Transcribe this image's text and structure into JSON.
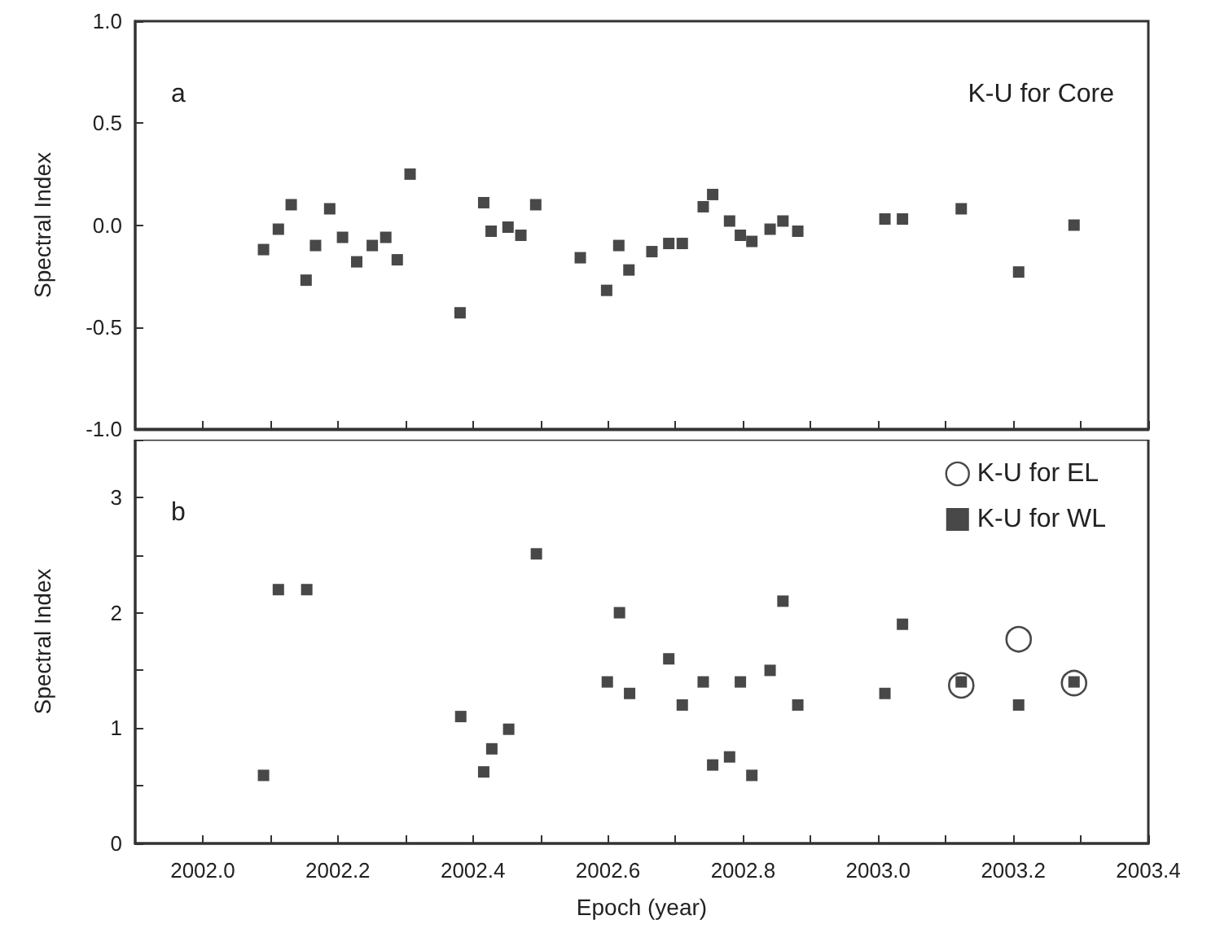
{
  "chart_data": [
    {
      "type": "scatter",
      "ylabel": "Spectral Index",
      "annotations": [
        "a",
        "K-U for Core"
      ],
      "marker": "square",
      "tick_labels": "y",
      "xlim": [
        2001.9,
        2003.4
      ],
      "xticks": [
        {
          "value": 2002.0,
          "label": null
        },
        {
          "value": 2002.1,
          "label": null
        },
        {
          "value": 2002.2,
          "label": null
        },
        {
          "value": 2002.3,
          "label": null
        },
        {
          "value": 2002.4,
          "label": null
        },
        {
          "value": 2002.5,
          "label": null
        },
        {
          "value": 2002.6,
          "label": null
        },
        {
          "value": 2002.7,
          "label": null
        },
        {
          "value": 2002.8,
          "label": null
        },
        {
          "value": 2002.9,
          "label": null
        },
        {
          "value": 2003.0,
          "label": null
        },
        {
          "value": 2003.1,
          "label": null
        },
        {
          "value": 2003.2,
          "label": null
        },
        {
          "value": 2003.3,
          "label": null
        },
        {
          "value": 2003.4,
          "label": null
        }
      ],
      "ylim": [
        -1.0,
        1.0
      ],
      "yticks": [
        {
          "value": -1.0,
          "label": "-1.0"
        },
        {
          "value": -0.5,
          "label": "-0.5"
        },
        {
          "value": 0,
          "label": "0.0"
        },
        {
          "value": 0.5,
          "label": "0.5"
        },
        {
          "value": 1.0,
          "label": "1.0"
        }
      ],
      "series": [
        {
          "color": "#1a1a1a",
          "x": [
            2002.09,
            2002.112,
            2002.131,
            2002.153,
            2002.167,
            2002.188,
            2002.207,
            2002.228,
            2002.251,
            2002.271,
            2002.288,
            2002.307,
            2002.381,
            2002.416,
            2002.427,
            2002.452,
            2002.471,
            2002.493,
            2002.559,
            2002.598,
            2002.616,
            2002.631,
            2002.665,
            2002.69,
            2002.71,
            2002.741,
            2002.755,
            2002.78,
            2002.796,
            2002.813,
            2002.84,
            2002.859,
            2002.881,
            2003.01,
            2003.036,
            2003.123,
            2003.208,
            2003.29
          ],
          "values": [
            -0.12,
            -0.02,
            0.1,
            -0.27,
            -0.1,
            0.08,
            -0.06,
            -0.18,
            -0.1,
            -0.06,
            -0.17,
            0.25,
            -0.43,
            0.11,
            -0.03,
            -0.01,
            -0.05,
            0.1,
            -0.16,
            -0.32,
            -0.1,
            -0.22,
            -0.13,
            -0.09,
            -0.09,
            0.09,
            0.15,
            0.02,
            -0.05,
            -0.08,
            -0.02,
            0.02,
            -0.03,
            0.03,
            0.03,
            0.08,
            -0.23,
            0.0
          ]
        }
      ]
    },
    {
      "type": "scatter",
      "xlabel": "Epoch (year)",
      "ylabel": "Spectral Index",
      "annotations": [
        "b"
      ],
      "legend": "top right",
      "xlim": [
        2001.9,
        2003.4
      ],
      "xticks": [
        {
          "value": 2002.0,
          "label": "2002.0"
        },
        {
          "value": 2002.1,
          "label": null
        },
        {
          "value": 2002.2,
          "label": "2002.2"
        },
        {
          "value": 2002.3,
          "label": null
        },
        {
          "value": 2002.4,
          "label": "2002.4"
        },
        {
          "value": 2002.5,
          "label": null
        },
        {
          "value": 2002.6,
          "label": "2002.6"
        },
        {
          "value": 2002.7,
          "label": null
        },
        {
          "value": 2002.8,
          "label": "2002.8"
        },
        {
          "value": 2002.9,
          "label": null
        },
        {
          "value": 2003.0,
          "label": "2003.0"
        },
        {
          "value": 2003.1,
          "label": null
        },
        {
          "value": 2003.2,
          "label": "2003.2"
        },
        {
          "value": 2003.3,
          "label": null
        },
        {
          "value": 2003.4,
          "label": "2003.4"
        }
      ],
      "ylim": [
        0,
        3.5
      ],
      "yticks": [
        0,
        {
          "value": 0.5,
          "label": null
        },
        1,
        {
          "value": 1.5,
          "label": null
        },
        2,
        {
          "value": 2.5,
          "label": null
        },
        3,
        {
          "value": 3.5,
          "label": null
        }
      ],
      "series": [
        {
          "name": "K-U for EL",
          "color": "#1a1a1a",
          "marker": "circle",
          "x": [
            2003.123,
            2003.208,
            2003.29
          ],
          "values": [
            1.37,
            1.77,
            1.39
          ]
        },
        {
          "name": "K-U for WL",
          "color": "#1a1a1a",
          "marker": "square",
          "x": [
            2002.09,
            2002.112,
            2002.154,
            2002.382,
            2002.416,
            2002.428,
            2002.453,
            2002.494,
            2002.599,
            2002.617,
            2002.632,
            2002.69,
            2002.71,
            2002.741,
            2002.755,
            2002.78,
            2002.796,
            2002.813,
            2002.84,
            2002.859,
            2002.881,
            2003.01,
            2003.036,
            2003.123,
            2003.208,
            2003.29
          ],
          "values": [
            0.59,
            2.2,
            2.2,
            1.1,
            0.62,
            0.82,
            0.99,
            2.51,
            1.4,
            2.0,
            1.3,
            1.6,
            1.2,
            1.4,
            0.68,
            0.75,
            1.4,
            0.59,
            1.5,
            2.1,
            1.2,
            1.3,
            1.9,
            1.4,
            1.2,
            1.4
          ]
        }
      ]
    }
  ]
}
